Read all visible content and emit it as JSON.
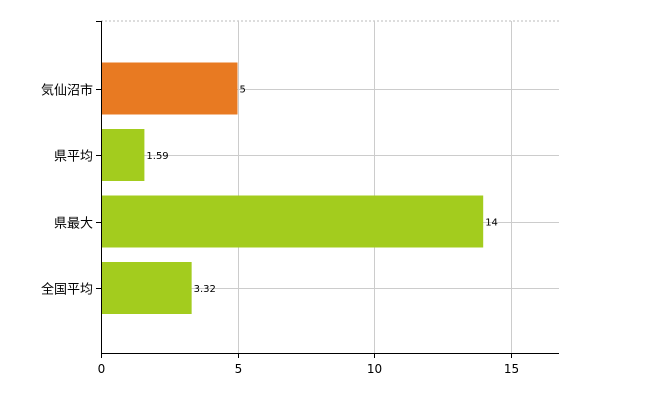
{
  "chart_data": {
    "type": "bar",
    "orientation": "horizontal",
    "categories": [
      "気仙沼市",
      "県平均",
      "県最大",
      "全国平均"
    ],
    "values": [
      5,
      1.59,
      14,
      3.32
    ],
    "value_labels": [
      "5",
      "1.59",
      "14",
      "3.32"
    ],
    "bar_colors": [
      "#e87a22",
      "#a3cc1e",
      "#a3cc1e",
      "#a3cc1e"
    ],
    "xlim": [
      0,
      16.8
    ],
    "x_ticks": [
      0,
      5,
      10,
      15
    ],
    "x_tick_labels": [
      "0",
      "5",
      "10",
      "15"
    ],
    "grid": true,
    "title": "",
    "xlabel": "",
    "ylabel": ""
  }
}
